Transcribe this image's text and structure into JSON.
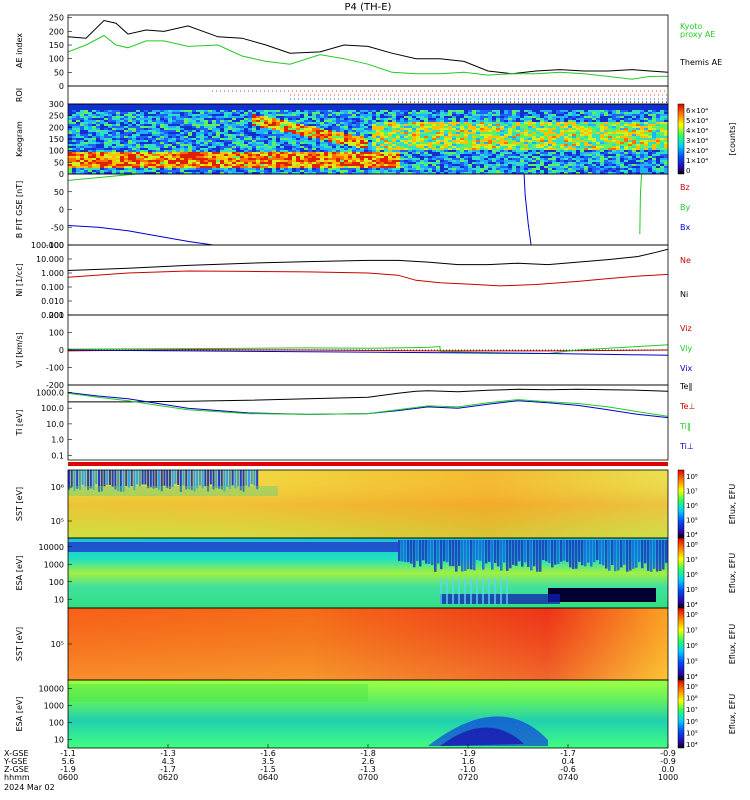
{
  "title": "P4 (TH-E)",
  "footer": {
    "date": "2024 Mar 02"
  },
  "chart_data": {
    "type": "line",
    "xaxis": {
      "row_labels": [
        "X-GSE",
        "Y-GSE",
        "Z-GSE",
        "hhmm"
      ],
      "ticks": [
        {
          "x": "-1.1",
          "y": "5.6",
          "z": "-1.9",
          "t": "0600"
        },
        {
          "x": "-1.3",
          "y": "4.3",
          "z": "-1.7",
          "t": "0620"
        },
        {
          "x": "-1.6",
          "y": "3.5",
          "z": "-1.5",
          "t": "0640"
        },
        {
          "x": "-1.8",
          "y": "2.6",
          "z": "-1.3",
          "t": "0700"
        },
        {
          "x": "-1.9",
          "y": "1.6",
          "z": "-1.0",
          "t": "0720"
        },
        {
          "x": "-1.7",
          "y": "0.4",
          "z": "-0.6",
          "t": "0740"
        },
        {
          "x": "-0.9",
          "y": "-0.9",
          "z": "0.0",
          "t": "1000"
        }
      ]
    },
    "panels": [
      {
        "id": "ae",
        "ylabel": "AE index",
        "scale": "linear",
        "ylim": [
          0,
          260
        ],
        "yticks": [
          "250",
          "200",
          "150",
          "100",
          "50",
          "0"
        ],
        "legend": [
          {
            "text": "Kyoto",
            "color": "#22cc22"
          },
          {
            "text": "proxy AE",
            "color": "#22cc22"
          },
          {
            "text": "Themis AE",
            "color": "#000000"
          }
        ],
        "series": [
          {
            "name": "Themis AE",
            "color": "#000000",
            "t": [
              0,
              0.03,
              0.06,
              0.08,
              0.1,
              0.13,
              0.16,
              0.2,
              0.25,
              0.29,
              0.33,
              0.37,
              0.42,
              0.46,
              0.5,
              0.54,
              0.58,
              0.62,
              0.66,
              0.7,
              0.74,
              0.78,
              0.82,
              0.86,
              0.9,
              0.94,
              0.97,
              1.0
            ],
            "values": [
              180,
              175,
              240,
              230,
              190,
              205,
              200,
              220,
              180,
              175,
              150,
              120,
              125,
              150,
              145,
              120,
              100,
              100,
              90,
              55,
              45,
              55,
              60,
              55,
              55,
              60,
              55,
              50
            ]
          },
          {
            "name": "Kyoto proxy AE",
            "color": "#22cc22",
            "t": [
              0,
              0.03,
              0.06,
              0.08,
              0.1,
              0.13,
              0.16,
              0.2,
              0.25,
              0.29,
              0.33,
              0.37,
              0.42,
              0.46,
              0.5,
              0.54,
              0.58,
              0.62,
              0.66,
              0.7,
              0.74,
              0.78,
              0.82,
              0.86,
              0.9,
              0.94,
              0.97,
              1.0
            ],
            "values": [
              125,
              150,
              185,
              150,
              140,
              165,
              165,
              145,
              150,
              110,
              90,
              80,
              115,
              100,
              80,
              50,
              45,
              45,
              50,
              40,
              45,
              45,
              50,
              45,
              35,
              25,
              35,
              35
            ]
          }
        ]
      },
      {
        "id": "roi",
        "ylabel": "ROI",
        "type": "flags"
      },
      {
        "id": "keogram",
        "ylabel": "Keogram",
        "type": "heatmap",
        "ylim": [
          0,
          300
        ],
        "yticks": [
          "300",
          "250",
          "200",
          "150",
          "100",
          "50",
          "0"
        ],
        "colorbar": {
          "label": "[counts]",
          "ticks": [
            "6×10⁴",
            "5×10⁴",
            "4×10⁴",
            "3×10⁴",
            "2×10⁴",
            "1×10⁴",
            "0"
          ]
        }
      },
      {
        "id": "bfit",
        "ylabel": "B FIT GSE [nT]",
        "scale": "linear",
        "ylim": [
          -100,
          100
        ],
        "yticks": [
          "50",
          "0",
          "-50",
          "-100"
        ],
        "legend": [
          {
            "text": "Bz",
            "color": "#cc0000"
          },
          {
            "text": "By",
            "color": "#22cc22"
          },
          {
            "text": "Bx",
            "color": "#0000cc"
          }
        ],
        "series": [
          {
            "name": "Bx",
            "color": "#0000cc",
            "t": [
              0,
              0.05,
              0.1,
              0.15,
              0.2,
              0.25
            ],
            "values": [
              -45,
              -50,
              -60,
              -75,
              -90,
              -102
            ]
          },
          {
            "name": "By",
            "color": "#22cc22",
            "t": [
              0,
              0.05,
              0.1,
              0.15
            ],
            "values": [
              82,
              90,
              98,
              105
            ]
          },
          {
            "name": "Bx late",
            "color": "#0000cc",
            "t": [
              0.76,
              0.762,
              0.767,
              0.772
            ],
            "values": [
              105,
              40,
              -40,
              -102
            ]
          },
          {
            "name": "By late",
            "color": "#22cc22",
            "t": [
              0.953,
              0.954,
              0.956
            ],
            "values": [
              -70,
              40,
              105
            ]
          }
        ]
      },
      {
        "id": "density",
        "ylabel": "Ni [1/cc]",
        "scale": "log",
        "ylim": [
          0.001,
          100
        ],
        "yticks": [
          "100.000",
          "10.000",
          "1.000",
          "0.100",
          "0.010",
          "0.001"
        ],
        "legend": [
          {
            "text": "Ne",
            "color": "#cc0000"
          },
          {
            "text": "Ni",
            "color": "#000000"
          }
        ],
        "series": [
          {
            "name": "Ne",
            "color": "#000000",
            "t": [
              0,
              0.1,
              0.2,
              0.3,
              0.4,
              0.5,
              0.55,
              0.6,
              0.65,
              0.7,
              0.75,
              0.8,
              0.85,
              0.9,
              0.95,
              0.98,
              1.0
            ],
            "values": [
              1.5,
              2.2,
              3.5,
              5,
              6.5,
              8,
              8,
              6,
              4,
              4,
              5,
              4,
              6,
              9,
              15,
              30,
              50
            ]
          },
          {
            "name": "Ni",
            "color": "#cc0000",
            "t": [
              0,
              0.1,
              0.2,
              0.3,
              0.4,
              0.5,
              0.55,
              0.58,
              0.62,
              0.68,
              0.72,
              0.78,
              0.85,
              0.9,
              0.95,
              1.0
            ],
            "values": [
              0.5,
              1.0,
              1.4,
              1.3,
              1.2,
              1.0,
              0.7,
              0.3,
              0.2,
              0.15,
              0.12,
              0.15,
              0.25,
              0.4,
              0.6,
              0.8
            ]
          }
        ]
      },
      {
        "id": "velocity",
        "ylabel": "Vi [km/s]",
        "scale": "linear",
        "ylim": [
          -200,
          200
        ],
        "yticks": [
          "200",
          "100",
          "0",
          "-100",
          "-200"
        ],
        "legend": [
          {
            "text": "Viz",
            "color": "#cc0000"
          },
          {
            "text": "Viy",
            "color": "#22cc22"
          },
          {
            "text": "Vix",
            "color": "#0000cc"
          }
        ],
        "series": [
          {
            "name": "Viz",
            "color": "#cc0000",
            "t": [
              0,
              0.2,
              0.4,
              0.6,
              0.8,
              1.0
            ],
            "values": [
              -5,
              2,
              0,
              -5,
              -5,
              0
            ]
          },
          {
            "name": "Viy",
            "color": "#22cc22",
            "t": [
              0,
              0.2,
              0.4,
              0.5,
              0.6,
              0.62,
              0.62,
              0.8,
              0.85,
              0.9,
              0.95,
              1.0
            ],
            "values": [
              5,
              8,
              12,
              10,
              15,
              20,
              -10,
              -20,
              0,
              10,
              20,
              30
            ]
          },
          {
            "name": "Vix",
            "color": "#0000cc",
            "t": [
              0,
              0.2,
              0.4,
              0.6,
              0.8,
              0.9,
              1.0
            ],
            "values": [
              0,
              -5,
              -10,
              -15,
              -20,
              -25,
              -30
            ]
          }
        ]
      },
      {
        "id": "temperature",
        "ylabel": "Ti [eV]",
        "scale": "log",
        "ylim": [
          0.05,
          3000
        ],
        "yticks": [
          "1000.0",
          "100.0",
          "10.0",
          "1.0",
          "0.1"
        ],
        "legend": [
          {
            "text": "Te‖",
            "color": "#000000"
          },
          {
            "text": "Te⊥",
            "color": "#cc0000"
          },
          {
            "text": "Ti‖",
            "color": "#22cc22"
          },
          {
            "text": "Ti⊥",
            "color": "#0000cc"
          }
        ],
        "series": [
          {
            "name": "Te‖",
            "color": "#000000",
            "t": [
              0,
              0.1,
              0.2,
              0.3,
              0.4,
              0.5,
              0.55,
              0.58,
              0.6,
              0.65,
              0.7,
              0.75,
              0.8,
              0.85,
              0.9,
              0.95,
              1.0
            ],
            "values": [
              250,
              250,
              280,
              320,
              400,
              500,
              900,
              1200,
              1300,
              1100,
              1400,
              1600,
              1500,
              1600,
              1500,
              1400,
              1200
            ]
          },
          {
            "name": "Ti⊥",
            "color": "#0000cc",
            "t": [
              0,
              0.05,
              0.1,
              0.15,
              0.2,
              0.3,
              0.4,
              0.5,
              0.55,
              0.6,
              0.65,
              0.7,
              0.75,
              0.8,
              0.85,
              0.9,
              0.95,
              1.0
            ],
            "values": [
              1000,
              600,
              400,
              200,
              100,
              50,
              40,
              45,
              70,
              120,
              100,
              180,
              300,
              220,
              150,
              80,
              40,
              25
            ]
          },
          {
            "name": "Ti‖",
            "color": "#22cc22",
            "t": [
              0,
              0.05,
              0.1,
              0.15,
              0.2,
              0.3,
              0.4,
              0.5,
              0.55,
              0.6,
              0.65,
              0.7,
              0.75,
              0.8,
              0.85,
              0.9,
              0.95,
              1.0
            ],
            "values": [
              900,
              500,
              300,
              150,
              80,
              45,
              40,
              45,
              80,
              140,
              120,
              220,
              350,
              260,
              200,
              120,
              60,
              30
            ]
          }
        ]
      },
      {
        "id": "sst_ion",
        "ylabel": "SST [eV]",
        "type": "heatmap",
        "yticks": [
          "10⁶",
          "10⁵"
        ],
        "colorbar": {
          "label": "Eflux, EFU",
          "ticks": [
            "10⁸",
            "10⁷",
            "10⁶",
            "10⁵",
            "10⁴"
          ]
        }
      },
      {
        "id": "esa_ion",
        "ylabel": "ESA [eV]",
        "type": "heatmap",
        "yticks": [
          "10000",
          "1000",
          "100",
          "10"
        ],
        "colorbar": {
          "label": "Eflux, EFU",
          "ticks": [
            "10⁸",
            "10⁷",
            "10⁶",
            "10⁵",
            "10⁴"
          ]
        }
      },
      {
        "id": "sst_elec",
        "ylabel": "SST [eV]",
        "type": "heatmap",
        "yticks": [
          "10⁵"
        ],
        "colorbar": {
          "label": "Eflux, EFU",
          "ticks": [
            "10⁸",
            "10⁷",
            "10⁶",
            "10⁵",
            "10⁴"
          ]
        }
      },
      {
        "id": "esa_elec",
        "ylabel": "ESA [eV]",
        "type": "heatmap",
        "yticks": [
          "10000",
          "1000",
          "100",
          "10"
        ],
        "colorbar": {
          "label": "Eflux, EFU",
          "ticks": [
            "10⁹",
            "10⁸",
            "10⁷",
            "10⁶",
            "10⁵",
            "10⁴"
          ]
        }
      }
    ]
  }
}
